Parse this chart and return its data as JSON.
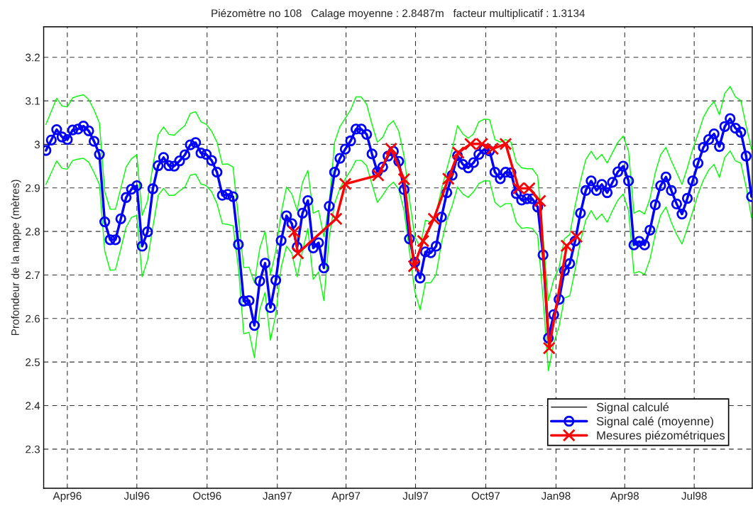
{
  "chart_data": {
    "type": "line",
    "title": "Piézomètre no 108   Calage moyenne : 2.8487m   facteur multiplicatif : 1.3134",
    "ylabel": "Profondeur de la nappe (mètres)",
    "x": [
      "1996-03-04",
      "1996-03-11",
      "1996-03-18",
      "1996-03-25",
      "1996-04-01",
      "1996-04-08",
      "1996-04-15",
      "1996-04-22",
      "1996-04-29",
      "1996-05-06",
      "1996-05-13",
      "1996-05-20",
      "1996-05-27",
      "1996-06-03",
      "1996-06-10",
      "1996-06-17",
      "1996-06-24",
      "1996-07-01",
      "1996-07-08",
      "1996-07-15",
      "1996-07-22",
      "1996-07-29",
      "1996-08-05",
      "1996-08-12",
      "1996-08-19",
      "1996-08-26",
      "1996-09-02",
      "1996-09-09",
      "1996-09-16",
      "1996-09-23",
      "1996-09-30",
      "1996-10-07",
      "1996-10-14",
      "1996-10-21",
      "1996-10-28",
      "1996-11-04",
      "1996-11-11",
      "1996-11-18",
      "1996-11-25",
      "1996-12-02",
      "1996-12-09",
      "1996-12-16",
      "1996-12-23",
      "1996-12-30",
      "1997-01-06",
      "1997-01-13",
      "1997-01-20",
      "1997-01-27",
      "1997-02-03",
      "1997-02-10",
      "1997-02-17",
      "1997-02-24",
      "1997-03-03",
      "1997-03-10",
      "1997-03-17",
      "1997-03-24",
      "1997-03-31",
      "1997-04-07",
      "1997-04-14",
      "1997-04-21",
      "1997-04-28",
      "1997-05-05",
      "1997-05-12",
      "1997-05-19",
      "1997-05-26",
      "1997-06-02",
      "1997-06-09",
      "1997-06-16",
      "1997-06-23",
      "1997-06-30",
      "1997-07-07",
      "1997-07-14",
      "1997-07-21",
      "1997-07-28",
      "1997-08-04",
      "1997-08-11",
      "1997-08-18",
      "1997-08-25",
      "1997-09-01",
      "1997-09-08",
      "1997-09-15",
      "1997-09-22",
      "1997-09-29",
      "1997-10-06",
      "1997-10-13",
      "1997-10-20",
      "1997-10-27",
      "1997-11-03",
      "1997-11-10",
      "1997-11-17",
      "1997-11-24",
      "1997-12-01",
      "1997-12-08",
      "1997-12-15",
      "1997-12-22",
      "1997-12-29",
      "1998-01-05",
      "1998-01-12",
      "1998-01-19",
      "1998-01-26",
      "1998-02-02",
      "1998-02-09",
      "1998-02-16",
      "1998-02-23",
      "1998-03-02",
      "1998-03-09",
      "1998-03-16",
      "1998-03-23",
      "1998-03-30",
      "1998-04-06",
      "1998-04-13",
      "1998-04-20",
      "1998-04-27",
      "1998-05-04",
      "1998-05-11",
      "1998-05-18",
      "1998-05-25",
      "1998-06-01",
      "1998-06-08",
      "1998-06-15",
      "1998-06-22",
      "1998-06-29",
      "1998-07-06",
      "1998-07-13",
      "1998-07-20",
      "1998-07-27",
      "1998-08-03",
      "1998-08-10",
      "1998-08-17",
      "1998-08-24",
      "1998-08-31",
      "1998-09-07",
      "1998-09-14"
    ],
    "series": [
      {
        "name": "Signal calculé",
        "color": "#000000",
        "line_style": "solid",
        "marker": "none",
        "values": [
          null,
          null,
          null,
          null,
          null,
          null,
          null,
          null,
          null,
          null,
          null,
          null,
          null,
          null,
          null,
          null,
          null,
          null,
          null,
          null,
          null,
          null,
          null,
          null,
          null,
          null,
          null,
          null,
          null,
          null,
          null,
          null,
          null,
          null,
          null,
          null,
          null,
          null,
          null,
          null,
          null,
          null,
          null,
          null,
          null,
          null,
          null,
          null,
          null,
          null,
          null,
          null,
          null,
          null,
          null,
          null,
          null,
          null,
          null,
          null,
          null,
          null,
          null,
          null,
          null,
          null,
          null,
          null,
          null,
          null,
          null,
          null,
          null,
          null,
          null,
          null,
          null,
          null,
          null,
          null,
          null,
          null,
          null,
          null,
          null,
          null,
          null,
          null,
          null,
          null,
          null,
          null,
          null,
          null,
          null,
          null,
          null,
          null,
          null,
          null,
          null,
          null,
          null,
          null,
          null,
          null,
          null,
          null,
          null,
          null,
          null,
          null,
          null,
          null,
          null,
          null,
          null,
          null,
          null,
          null,
          null,
          null,
          null,
          null,
          null,
          null,
          null,
          null,
          null,
          null,
          null,
          null,
          null
        ]
      },
      {
        "color": "#00ff00",
        "line_style": "solid",
        "marker": "none",
        "values": [
          3.046,
          3.076,
          3.106,
          3.088,
          3.086,
          3.107,
          3.111,
          3.114,
          3.103,
          3.079,
          3.049,
          2.891,
          2.851,
          2.851,
          2.899,
          2.948,
          2.967,
          2.976,
          2.837,
          2.87,
          2.951,
          3.022,
          3.04,
          3.023,
          3.021,
          3.033,
          3.043,
          3.071,
          3.075,
          3.052,
          3.046,
          3.03,
          3.005,
          2.954,
          2.955,
          2.948,
          2.832,
          2.717,
          2.718,
          2.682,
          2.761,
          2.8,
          2.701,
          2.755,
          2.842,
          2.902,
          2.886,
          2.848,
          2.913,
          2.94,
          2.842,
          2.848,
          2.788,
          2.864,
          3.005,
          3.041,
          3.06,
          3.079,
          3.109,
          3.109,
          3.092,
          3.046,
          3.005,
          3.016,
          3.043,
          3.054,
          3.03,
          2.973,
          2.875,
          2.788,
          2.764,
          2.826,
          2.821,
          2.842,
          2.897,
          2.943,
          2.989,
          3.043,
          3.024,
          3.014,
          3.024,
          3.052,
          3.058,
          3.057,
          3.011,
          3.005,
          3.011,
          3.005,
          2.959,
          2.946,
          2.944,
          2.944,
          2.927,
          2.788,
          2.641,
          2.69,
          2.717,
          2.783,
          2.793,
          2.859,
          2.916,
          2.965,
          2.984,
          2.965,
          2.977,
          2.957,
          2.981,
          3.005,
          3.019,
          2.984,
          2.842,
          2.848,
          2.84,
          2.875,
          2.935,
          2.976,
          2.993,
          2.962,
          2.935,
          2.908,
          2.946,
          2.989,
          3.024,
          3.062,
          3.084,
          3.098,
          3.068,
          3.117,
          3.133,
          3.109,
          3.101,
          3.043,
          2.989
        ]
      },
      {
        "color": "#00ff00",
        "line_style": "solid",
        "marker": "none",
        "values": [
          2.908,
          2.935,
          2.962,
          2.945,
          2.943,
          2.963,
          2.966,
          2.968,
          2.959,
          2.935,
          2.908,
          2.755,
          2.711,
          2.712,
          2.76,
          2.81,
          2.832,
          2.837,
          2.696,
          2.734,
          2.81,
          2.883,
          2.899,
          2.883,
          2.883,
          2.893,
          2.902,
          2.929,
          2.932,
          2.909,
          2.905,
          2.891,
          2.864,
          2.818,
          2.816,
          2.813,
          2.717,
          2.565,
          2.568,
          2.51,
          2.62,
          2.66,
          2.55,
          2.609,
          2.717,
          2.766,
          2.75,
          2.696,
          2.755,
          2.807,
          2.69,
          2.707,
          2.641,
          2.788,
          2.864,
          2.899,
          2.921,
          2.94,
          2.963,
          2.963,
          2.951,
          2.908,
          2.867,
          2.883,
          2.902,
          2.913,
          2.897,
          2.848,
          2.755,
          2.663,
          2.62,
          2.682,
          2.682,
          2.701,
          2.774,
          2.826,
          2.859,
          2.902,
          2.886,
          2.878,
          2.891,
          2.91,
          2.916,
          2.916,
          2.867,
          2.856,
          2.864,
          2.864,
          2.821,
          2.807,
          2.809,
          2.807,
          2.791,
          2.647,
          2.48,
          2.543,
          2.582,
          2.647,
          2.652,
          2.712,
          2.777,
          2.826,
          2.848,
          2.827,
          2.84,
          2.821,
          2.848,
          2.872,
          2.886,
          2.848,
          2.704,
          2.708,
          2.701,
          2.736,
          2.793,
          2.837,
          2.856,
          2.821,
          2.793,
          2.771,
          2.807,
          2.845,
          2.886,
          2.918,
          2.941,
          2.954,
          2.924,
          2.97,
          2.985,
          2.962,
          2.957,
          2.902,
          2.832
        ]
      },
      {
        "name": "Signal calé (moyenne)",
        "color": "#0000ff",
        "line_style": "solid",
        "marker": "circle",
        "values": [
          2.986,
          3.01,
          3.034,
          3.017,
          3.011,
          3.033,
          3.035,
          3.042,
          3.031,
          3.007,
          2.977,
          2.822,
          2.781,
          2.781,
          2.829,
          2.878,
          2.897,
          2.905,
          2.766,
          2.799,
          2.898,
          2.951,
          2.97,
          2.951,
          2.95,
          2.962,
          2.976,
          2.999,
          3.004,
          2.98,
          2.977,
          2.963,
          2.936,
          2.883,
          2.885,
          2.88,
          2.77,
          2.64,
          2.641,
          2.584,
          2.686,
          2.727,
          2.625,
          2.688,
          2.779,
          2.836,
          2.818,
          2.764,
          2.842,
          2.871,
          2.762,
          2.774,
          2.716,
          2.858,
          2.936,
          2.968,
          2.989,
          3.008,
          3.035,
          3.035,
          3.023,
          2.978,
          2.937,
          2.948,
          2.973,
          2.984,
          2.961,
          2.896,
          2.783,
          2.729,
          2.693,
          2.753,
          2.751,
          2.766,
          2.833,
          2.889,
          2.929,
          2.974,
          2.954,
          2.946,
          2.958,
          2.977,
          2.989,
          2.985,
          2.936,
          2.921,
          2.936,
          2.935,
          2.887,
          2.872,
          2.875,
          2.875,
          2.856,
          2.746,
          2.555,
          2.609,
          2.644,
          2.71,
          2.726,
          2.778,
          2.842,
          2.894,
          2.916,
          2.894,
          2.908,
          2.889,
          2.913,
          2.937,
          2.95,
          2.916,
          2.769,
          2.777,
          2.769,
          2.803,
          2.861,
          2.905,
          2.925,
          2.894,
          2.863,
          2.84,
          2.876,
          2.916,
          2.957,
          2.993,
          3.011,
          3.024,
          2.995,
          3.041,
          3.059,
          3.037,
          3.028,
          2.973,
          2.88
        ]
      },
      {
        "name": "Mesures piézométriques",
        "color": "#ff0000",
        "line_style": "solid",
        "marker": "cross",
        "x": [
          "1997-01-23",
          "1997-01-28",
          "1997-03-19",
          "1997-03-31",
          "1997-05-13",
          "1997-05-30",
          "1997-06-16",
          "1997-06-29",
          "1997-07-11",
          "1997-07-25",
          "1997-08-13",
          "1997-08-26",
          "1997-09-11",
          "1997-09-26",
          "1997-10-10",
          "1997-10-27",
          "1997-11-13",
          "1997-11-27",
          "1997-12-11",
          "1997-12-23",
          "1998-01-15",
          "1998-01-28"
        ],
        "values": [
          2.799,
          2.75,
          2.829,
          2.909,
          2.929,
          2.99,
          2.92,
          2.72,
          2.778,
          2.829,
          2.921,
          2.981,
          3.001,
          3.001,
          2.99,
          3.001,
          2.899,
          2.899,
          2.87,
          2.532,
          2.767,
          2.788
        ]
      }
    ],
    "xlim": [
      "1996-03-01",
      "1998-09-15"
    ],
    "xticks": [
      {
        "value": "1996-04-01",
        "label": "Apr96"
      },
      {
        "value": "1996-07-01",
        "label": "Jul96"
      },
      {
        "value": "1996-10-01",
        "label": "Oct96"
      },
      {
        "value": "1997-01-01",
        "label": "Jan97"
      },
      {
        "value": "1997-04-01",
        "label": "Apr97"
      },
      {
        "value": "1997-07-01",
        "label": "Jul97"
      },
      {
        "value": "1997-10-01",
        "label": "Oct97"
      },
      {
        "value": "1998-01-01",
        "label": "Jan98"
      },
      {
        "value": "1998-04-01",
        "label": "Apr98"
      },
      {
        "value": "1998-07-01",
        "label": "Jul98"
      }
    ],
    "ylim": [
      2.21,
      3.27
    ],
    "yticks": [
      2.3,
      2.4,
      2.5,
      2.6,
      2.7,
      2.8,
      2.9,
      3,
      3.1,
      3.2
    ],
    "grid": true,
    "legend": "bottom right"
  }
}
